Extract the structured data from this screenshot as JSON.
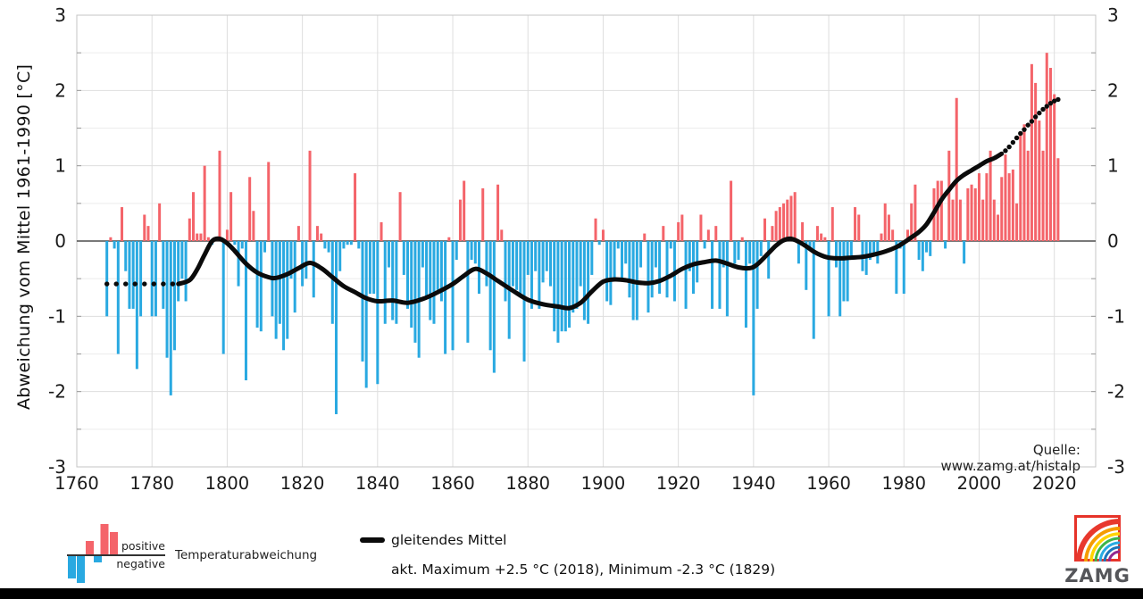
{
  "colors": {
    "positive": "#f4646a",
    "negative": "#29a9e1",
    "mean_line": "#0b0b0b",
    "zero_line": "#4d4d4d",
    "grid_vertical": "#dedede",
    "grid_horizontal": "#ececec",
    "frame": "#c4c4c4",
    "tick_text": "#1a1a1a"
  },
  "axes": {
    "y_title": "Abweichung vom Mittel 1961-1990 [°C]",
    "y_ticks": [
      3,
      2,
      1,
      0,
      -1,
      -2,
      -3
    ],
    "x_ticks": [
      1760,
      1780,
      1800,
      1820,
      1840,
      1860,
      1880,
      1900,
      1920,
      1940,
      1960,
      1980,
      2000,
      2020
    ],
    "y_range": [
      -3,
      3
    ],
    "x_range": [
      1760,
      2031
    ]
  },
  "source_note": "Quelle: www.zamg.at/histalp",
  "legend": {
    "positive_label": "positive",
    "negative_label": "negative",
    "series_label": "Temperaturabweichung",
    "mean_label": "gleitendes Mittel",
    "stats_label": "akt. Maximum +2.5 °C (2018), Minimum -2.3 °C (1829)",
    "mini_bars": [
      -26,
      -31,
      16,
      -8,
      35,
      26
    ],
    "mini_bar_x": [
      16,
      26,
      36,
      45,
      52.5,
      63
    ]
  },
  "logo": {
    "text": "ZAMG",
    "frame_color": "#e63329",
    "text_color": "#55565a",
    "arc_colors": [
      "#e8382d",
      "#f59c00",
      "#ffd400",
      "#3db54a",
      "#29abe2",
      "#1b75bb",
      "#92278f"
    ],
    "arc_radii": [
      46,
      38,
      32,
      27,
      22,
      17,
      12
    ],
    "arc_widths": [
      6,
      4,
      3.5,
      3,
      3,
      3,
      3
    ]
  },
  "chart_data": {
    "type": "bar",
    "title": "",
    "xlabel": "",
    "ylabel": "Abweichung vom Mittel 1961-1990 [°C]",
    "ylim": [
      -3,
      3
    ],
    "grid": true,
    "series_name": "Temperaturabweichung",
    "start_year": 1768,
    "end_year": 2021,
    "extremes": {
      "max": {
        "year": 2018,
        "value": 2.5
      },
      "min": {
        "year": 1829,
        "value": -2.3
      }
    },
    "values": [
      -1.0,
      0.05,
      -0.1,
      -1.5,
      0.45,
      -0.4,
      -0.9,
      -0.9,
      -1.7,
      -1.0,
      0.35,
      0.2,
      -1.0,
      -1.0,
      0.5,
      -0.9,
      -1.55,
      -2.05,
      -1.45,
      -0.8,
      -0.5,
      -0.8,
      0.3,
      0.65,
      0.1,
      0.1,
      1.0,
      0.05,
      -0.05,
      0.05,
      1.2,
      -1.5,
      0.15,
      0.65,
      -0.05,
      -0.6,
      -0.1,
      -1.85,
      0.85,
      0.4,
      -1.15,
      -1.2,
      -0.15,
      1.05,
      -1.0,
      -1.3,
      -1.1,
      -1.45,
      -1.3,
      -0.5,
      -0.95,
      0.2,
      -0.6,
      -0.5,
      1.2,
      -0.75,
      0.2,
      0.1,
      -0.1,
      -0.15,
      -1.1,
      -2.3,
      -0.4,
      -0.1,
      -0.05,
      -0.05,
      0.9,
      -0.1,
      -1.6,
      -1.95,
      -0.7,
      -0.7,
      -1.9,
      0.25,
      -1.1,
      -0.35,
      -1.05,
      -1.1,
      0.65,
      -0.45,
      -0.9,
      -1.15,
      -1.35,
      -1.55,
      -0.35,
      -0.75,
      -1.05,
      -1.1,
      -0.65,
      -0.8,
      -1.5,
      0.05,
      -1.45,
      -0.25,
      0.55,
      0.8,
      -1.35,
      -0.25,
      -0.3,
      -0.7,
      0.7,
      -0.6,
      -1.45,
      -1.75,
      0.75,
      0.15,
      -0.8,
      -1.3,
      -0.6,
      -0.65,
      -0.75,
      -1.6,
      -0.45,
      -0.9,
      -0.4,
      -0.9,
      -0.55,
      -0.4,
      -0.6,
      -1.2,
      -1.35,
      -1.2,
      -1.2,
      -1.15,
      -0.95,
      -0.9,
      -0.6,
      -1.05,
      -1.1,
      -0.45,
      0.3,
      -0.05,
      0.15,
      -0.8,
      -0.85,
      -0.5,
      -0.1,
      -0.5,
      -0.3,
      -0.75,
      -1.05,
      -1.05,
      -0.35,
      0.1,
      -0.95,
      -0.75,
      -0.35,
      -0.7,
      0.2,
      -0.75,
      -0.1,
      -0.8,
      0.25,
      0.35,
      -0.9,
      -0.4,
      -0.7,
      -0.55,
      0.35,
      -0.1,
      0.15,
      -0.9,
      0.2,
      -0.9,
      -0.35,
      -1.0,
      0.8,
      -0.3,
      -0.25,
      0.05,
      -1.15,
      -0.3,
      -2.05,
      -0.9,
      -0.2,
      0.3,
      -0.5,
      0.2,
      0.4,
      0.45,
      0.5,
      0.55,
      0.6,
      0.65,
      -0.3,
      0.25,
      -0.65,
      -0.1,
      -1.3,
      0.2,
      0.1,
      0.05,
      -1.0,
      0.45,
      -0.35,
      -1.0,
      -0.8,
      -0.8,
      -0.2,
      0.45,
      0.35,
      -0.4,
      -0.45,
      -0.25,
      -0.2,
      -0.3,
      0.1,
      0.5,
      0.35,
      0.15,
      -0.7,
      -0.1,
      -0.7,
      0.15,
      0.5,
      0.75,
      -0.25,
      -0.4,
      -0.15,
      -0.2,
      0.7,
      0.8,
      0.8,
      -0.1,
      1.2,
      0.55,
      1.9,
      0.55,
      -0.3,
      0.7,
      0.75,
      0.7,
      0.9,
      0.55,
      0.9,
      1.2,
      0.55,
      0.35,
      0.85,
      1.15,
      0.9,
      0.95,
      0.5,
      1.45,
      1.55,
      1.2,
      2.35,
      2.1,
      1.6,
      1.2,
      2.5,
      2.3,
      1.95,
      1.1
    ],
    "running_mean": {
      "dotted_start": [
        [
          1768,
          -0.57
        ],
        [
          1770.5,
          -0.57
        ],
        [
          1773,
          -0.57
        ],
        [
          1775.5,
          -0.57
        ],
        [
          1778,
          -0.57
        ],
        [
          1780.5,
          -0.57
        ],
        [
          1783,
          -0.57
        ],
        [
          1785.5,
          -0.57
        ]
      ],
      "solid": [
        [
          1787,
          -0.57
        ],
        [
          1790,
          -0.52
        ],
        [
          1792,
          -0.38
        ],
        [
          1794,
          -0.18
        ],
        [
          1796,
          0.0
        ],
        [
          1798,
          0.03
        ],
        [
          1800,
          -0.03
        ],
        [
          1802,
          -0.13
        ],
        [
          1805,
          -0.3
        ],
        [
          1808,
          -0.42
        ],
        [
          1811,
          -0.48
        ],
        [
          1813,
          -0.49
        ],
        [
          1816,
          -0.44
        ],
        [
          1819,
          -0.36
        ],
        [
          1822,
          -0.29
        ],
        [
          1825,
          -0.36
        ],
        [
          1828,
          -0.48
        ],
        [
          1831,
          -0.6
        ],
        [
          1834,
          -0.68
        ],
        [
          1837,
          -0.76
        ],
        [
          1840,
          -0.8
        ],
        [
          1844,
          -0.79
        ],
        [
          1848,
          -0.82
        ],
        [
          1852,
          -0.77
        ],
        [
          1856,
          -0.68
        ],
        [
          1860,
          -0.57
        ],
        [
          1863,
          -0.46
        ],
        [
          1866,
          -0.37
        ],
        [
          1869,
          -0.43
        ],
        [
          1872,
          -0.53
        ],
        [
          1876,
          -0.66
        ],
        [
          1880,
          -0.78
        ],
        [
          1884,
          -0.84
        ],
        [
          1888,
          -0.87
        ],
        [
          1891,
          -0.89
        ],
        [
          1894,
          -0.82
        ],
        [
          1897,
          -0.67
        ],
        [
          1900,
          -0.54
        ],
        [
          1903,
          -0.51
        ],
        [
          1906,
          -0.52
        ],
        [
          1909,
          -0.55
        ],
        [
          1912,
          -0.56
        ],
        [
          1915,
          -0.53
        ],
        [
          1918,
          -0.46
        ],
        [
          1921,
          -0.37
        ],
        [
          1924,
          -0.31
        ],
        [
          1927,
          -0.28
        ],
        [
          1930,
          -0.26
        ],
        [
          1933,
          -0.3
        ],
        [
          1936,
          -0.35
        ],
        [
          1939,
          -0.36
        ],
        [
          1941,
          -0.31
        ],
        [
          1944,
          -0.16
        ],
        [
          1946,
          -0.06
        ],
        [
          1948,
          0.01
        ],
        [
          1950,
          0.03
        ],
        [
          1952,
          -0.01
        ],
        [
          1954,
          -0.07
        ],
        [
          1956,
          -0.14
        ],
        [
          1958,
          -0.19
        ],
        [
          1960,
          -0.22
        ],
        [
          1963,
          -0.23
        ],
        [
          1966,
          -0.22
        ],
        [
          1969,
          -0.21
        ],
        [
          1972,
          -0.18
        ],
        [
          1975,
          -0.14
        ],
        [
          1978,
          -0.08
        ],
        [
          1980,
          -0.02
        ],
        [
          1982,
          0.05
        ],
        [
          1984,
          0.12
        ],
        [
          1986,
          0.22
        ],
        [
          1988,
          0.38
        ],
        [
          1990,
          0.55
        ],
        [
          1992,
          0.68
        ],
        [
          1994,
          0.8
        ],
        [
          1996,
          0.88
        ],
        [
          1998,
          0.94
        ],
        [
          2000,
          1.0
        ],
        [
          2002,
          1.06
        ],
        [
          2004,
          1.1
        ],
        [
          2006,
          1.16
        ]
      ],
      "dotted_end": [
        [
          2007,
          1.2
        ],
        [
          2008,
          1.25
        ],
        [
          2009,
          1.31
        ],
        [
          2010,
          1.37
        ],
        [
          2011,
          1.43
        ],
        [
          2012,
          1.48
        ],
        [
          2013,
          1.54
        ],
        [
          2014,
          1.59
        ],
        [
          2015,
          1.65
        ],
        [
          2016,
          1.7
        ],
        [
          2017,
          1.75
        ],
        [
          2018,
          1.79
        ],
        [
          2019,
          1.83
        ],
        [
          2020,
          1.86
        ],
        [
          2021,
          1.88
        ]
      ]
    }
  }
}
